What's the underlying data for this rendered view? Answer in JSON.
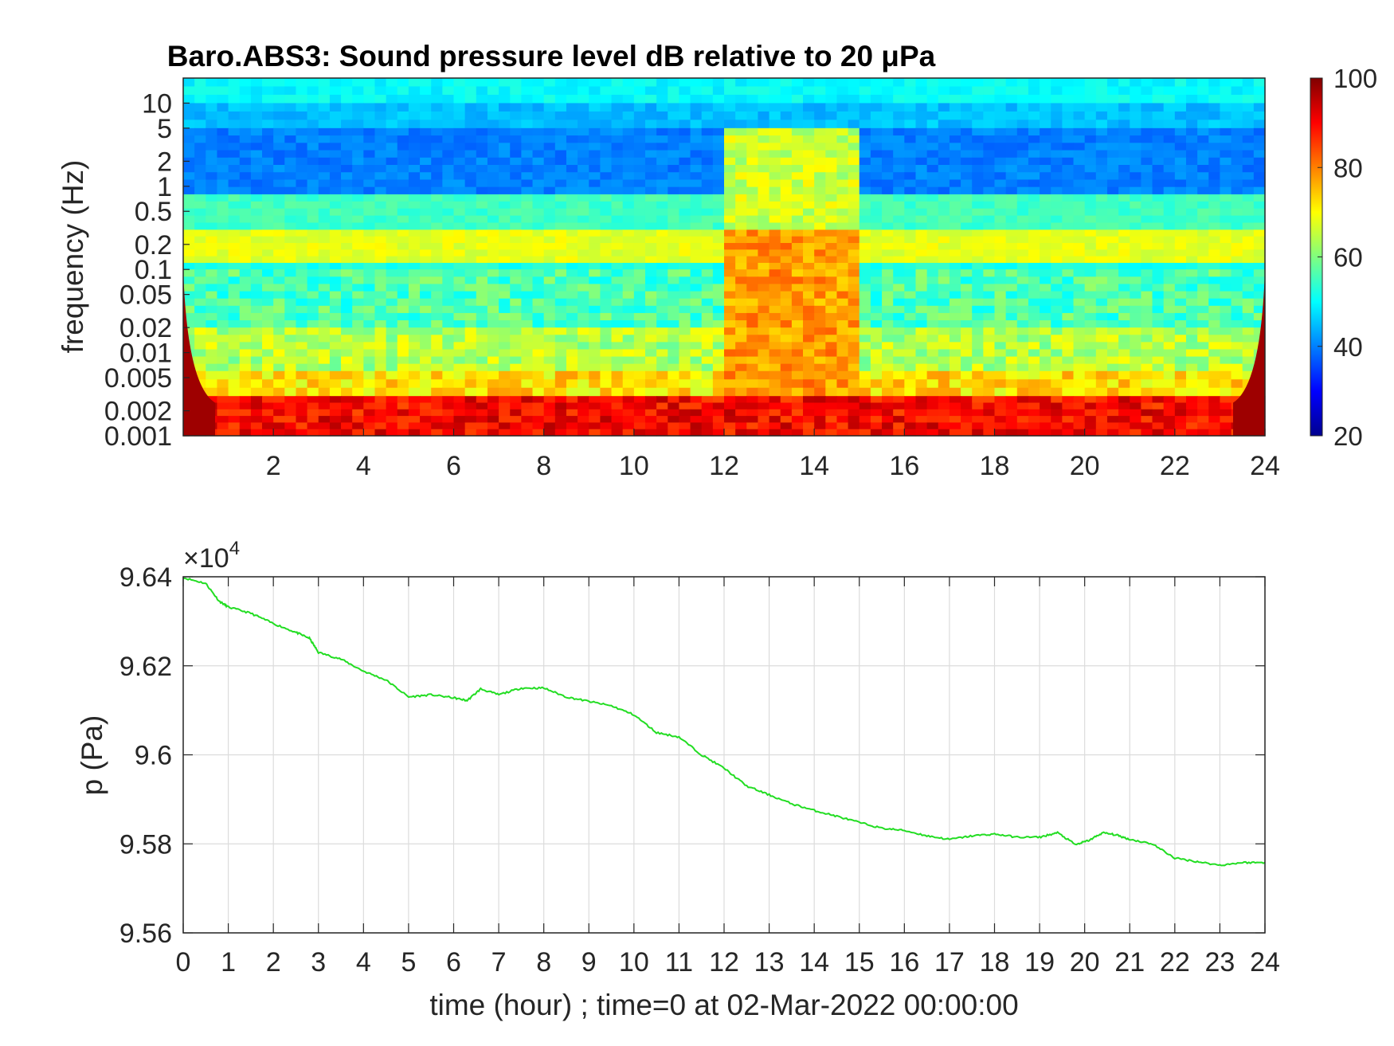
{
  "chart_data": [
    {
      "type": "heatmap",
      "title": "Baro.ABS3: Sound pressure level dB relative to 20 μPa",
      "ylabel": "frequency (Hz)",
      "xlabel": "",
      "xlim": [
        0,
        24
      ],
      "x_ticks": [
        2,
        4,
        6,
        8,
        10,
        12,
        14,
        16,
        18,
        20,
        22,
        24
      ],
      "y_scale": "log",
      "ylim": [
        0.001,
        20
      ],
      "y_ticks": [
        0.001,
        0.002,
        0.005,
        0.01,
        0.02,
        0.05,
        0.1,
        0.2,
        0.5,
        1,
        2,
        5,
        10
      ],
      "y_tick_labels": [
        "0.001",
        "0.002",
        "0.005",
        "0.01",
        "0.02",
        "0.05",
        "0.1",
        "0.2",
        "0.5",
        "1",
        "2",
        "5",
        "10"
      ],
      "colorbar": {
        "min": 20,
        "max": 100,
        "ticks": [
          20,
          40,
          60,
          80,
          100
        ],
        "colormap": "jet"
      },
      "features": {
        "band_levels_db": [
          {
            "freq_range": [
              10,
              20
            ],
            "level": 50
          },
          {
            "freq_range": [
              5,
              10
            ],
            "level": 45
          },
          {
            "freq_range": [
              0.8,
              5
            ],
            "level": 40
          },
          {
            "freq_range": [
              0.3,
              0.8
            ],
            "level": 55
          },
          {
            "freq_range": [
              0.12,
              0.3
            ],
            "level": 68
          },
          {
            "freq_range": [
              0.1,
              0.12
            ],
            "level": 52
          },
          {
            "freq_range": [
              0.02,
              0.1
            ],
            "level": 56
          },
          {
            "freq_range": [
              0.006,
              0.02
            ],
            "level": 64
          },
          {
            "freq_range": [
              0.003,
              0.006
            ],
            "level": 72
          },
          {
            "freq_range": [
              0.001,
              0.003
            ],
            "level": 90
          }
        ],
        "event_hours": [
          12,
          15
        ],
        "event_level_db": 78
      }
    },
    {
      "type": "line",
      "title": "",
      "ylabel": "p (Pa)",
      "xlabel": "time (hour) ; time=0 at 02-Mar-2022 00:00:00",
      "exponent_label": "×10",
      "exponent_power": "4",
      "xlim": [
        0,
        24
      ],
      "ylim": [
        95600,
        96400
      ],
      "x_ticks": [
        0,
        1,
        2,
        3,
        4,
        5,
        6,
        7,
        8,
        9,
        10,
        11,
        12,
        13,
        14,
        15,
        16,
        17,
        18,
        19,
        20,
        21,
        22,
        23,
        24
      ],
      "y_ticks": [
        95600,
        95800,
        96000,
        96200,
        96400
      ],
      "y_tick_labels": [
        "9.56",
        "9.58",
        "9.6",
        "9.62",
        "9.64"
      ],
      "grid": true,
      "series": [
        {
          "color": "#22dd22",
          "x": [
            0,
            0.5,
            0.8,
            1,
            1.5,
            2,
            2.5,
            2.8,
            3,
            3.5,
            4,
            4.5,
            5,
            5.5,
            6,
            6.3,
            6.6,
            7,
            7.5,
            8,
            8.5,
            9,
            9.5,
            10,
            10.5,
            11,
            11.5,
            12,
            12.5,
            13,
            13.5,
            14,
            14.5,
            15,
            15.5,
            16,
            16.5,
            17,
            17.5,
            18,
            18.5,
            19,
            19.4,
            19.8,
            20.1,
            20.4,
            20.7,
            21,
            21.5,
            22,
            22.5,
            23,
            23.5,
            24
          ],
          "y": [
            96398,
            96385,
            96345,
            96332,
            96318,
            96295,
            96275,
            96262,
            96230,
            96215,
            96188,
            96168,
            96130,
            96135,
            96128,
            96122,
            96148,
            96135,
            96150,
            96150,
            96130,
            96120,
            96110,
            96090,
            96050,
            96040,
            96000,
            95970,
            95930,
            95910,
            95890,
            95875,
            95862,
            95848,
            95835,
            95830,
            95818,
            95810,
            95818,
            95822,
            95815,
            95815,
            95825,
            95798,
            95808,
            95825,
            95820,
            95810,
            95800,
            95768,
            95760,
            95752,
            95758,
            95758
          ]
        }
      ]
    }
  ]
}
